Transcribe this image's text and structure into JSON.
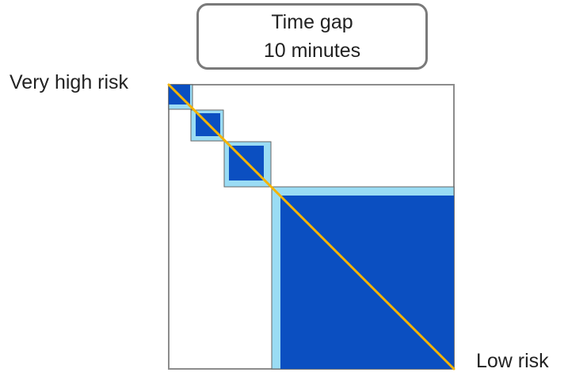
{
  "title": {
    "line1": "Time gap",
    "line2": "10 minutes"
  },
  "labels": {
    "top_left": "Very high risk",
    "bottom_right": "Low risk"
  },
  "colors": {
    "block_fill": "#0b4fc1",
    "block_border": "#9adcf4",
    "diagonal": "#f5b400",
    "frame": "#8c8c8c"
  }
}
